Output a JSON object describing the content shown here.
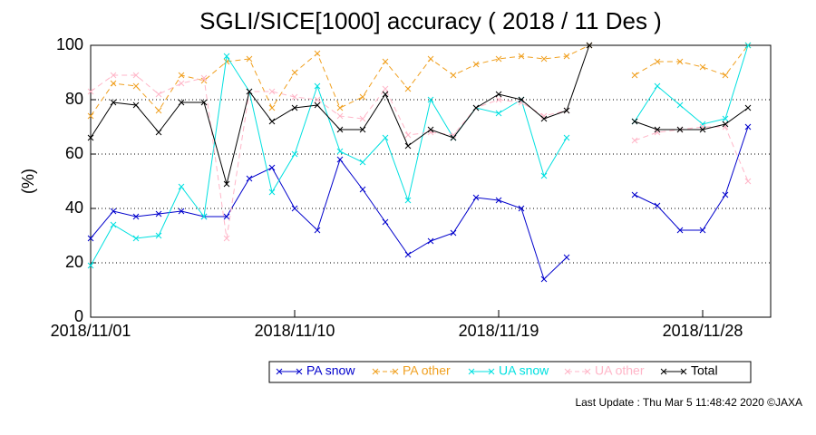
{
  "chart_data": {
    "type": "line",
    "title": "SGLI/SICE[1000] accuracy ( 2018 / 11 Des )",
    "y_label": "(%)",
    "footer": "Last Update : Thu Mar  5 11:48:42 2020 ©JAXA",
    "x": [
      1,
      2,
      3,
      4,
      5,
      6,
      7,
      8,
      9,
      10,
      11,
      12,
      13,
      14,
      15,
      16,
      17,
      18,
      19,
      20,
      21,
      22,
      23,
      24,
      25,
      26,
      27,
      28,
      29,
      30
    ],
    "xlim": [
      1,
      31
    ],
    "xticks": [
      {
        "value": 1,
        "label": "2018/11/01"
      },
      {
        "value": 10,
        "label": "2018/11/10"
      },
      {
        "value": 19,
        "label": "2018/11/19"
      },
      {
        "value": 28,
        "label": "2018/11/28"
      }
    ],
    "ylim": [
      0,
      100
    ],
    "yticks": [
      0,
      20,
      40,
      60,
      80,
      100
    ],
    "grid": true,
    "legend": "bottom",
    "series": [
      {
        "name": "PA snow",
        "color": "#0000cc",
        "dashed": false,
        "values": [
          29,
          39,
          37,
          38,
          39,
          37,
          37,
          51,
          55,
          40,
          32,
          58,
          47,
          35,
          23,
          28,
          31,
          44,
          43,
          40,
          14,
          22,
          null,
          null,
          45,
          41,
          32,
          32,
          45,
          70
        ]
      },
      {
        "name": "PA other",
        "color": "#f0a020",
        "dashed": true,
        "values": [
          74,
          86,
          85,
          76,
          89,
          87,
          94,
          95,
          77,
          90,
          97,
          77,
          81,
          94,
          84,
          95,
          89,
          93,
          95,
          96,
          95,
          96,
          100,
          null,
          89,
          94,
          94,
          92,
          89,
          100
        ]
      },
      {
        "name": "UA snow",
        "color": "#00e0e0",
        "dashed": false,
        "values": [
          19,
          34,
          29,
          30,
          48,
          37,
          96,
          83,
          46,
          60,
          85,
          61,
          57,
          66,
          43,
          80,
          66,
          77,
          75,
          80,
          52,
          66,
          null,
          null,
          72,
          85,
          78,
          71,
          73,
          100
        ]
      },
      {
        "name": "UA other",
        "color": "#ffb6c8",
        "dashed": true,
        "values": [
          83,
          89,
          89,
          82,
          86,
          88,
          29,
          83,
          83,
          81,
          80,
          74,
          73,
          84,
          67,
          68,
          67,
          77,
          80,
          79,
          74,
          76,
          null,
          null,
          65,
          68,
          69,
          70,
          70,
          50
        ]
      },
      {
        "name": "Total",
        "color": "#000000",
        "dashed": false,
        "values": [
          66,
          79,
          78,
          68,
          79,
          79,
          49,
          83,
          72,
          77,
          78,
          69,
          69,
          82,
          63,
          69,
          66,
          77,
          82,
          80,
          73,
          76,
          100,
          null,
          72,
          69,
          69,
          69,
          71,
          77
        ]
      }
    ]
  }
}
